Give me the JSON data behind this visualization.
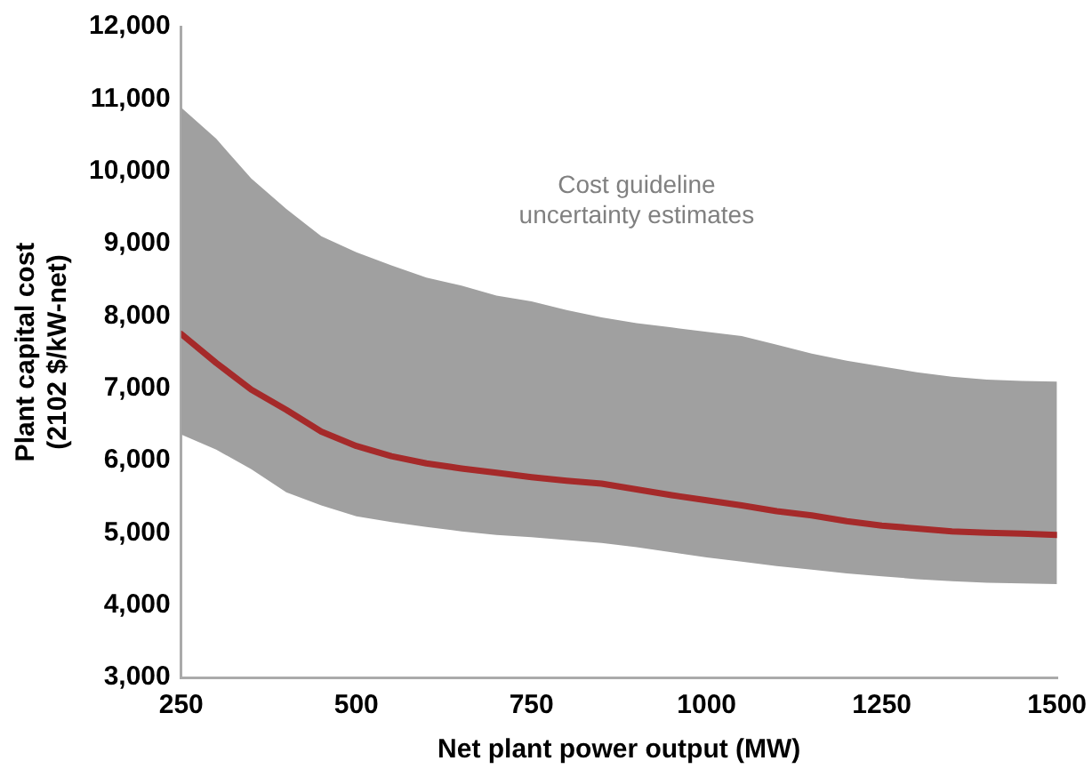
{
  "chart_data": {
    "type": "line",
    "xlabel": "Net plant power output (MW)",
    "ylabel": "Plant capital cost\n(2102 $/kW-net)",
    "annotations": [
      "Cost guideline\nuncertainty estimates"
    ],
    "x": [
      250,
      300,
      350,
      400,
      450,
      500,
      550,
      600,
      650,
      700,
      750,
      800,
      850,
      900,
      950,
      1000,
      1050,
      1100,
      1150,
      1200,
      1250,
      1300,
      1350,
      1400,
      1450,
      1500
    ],
    "series": [
      {
        "color": "#a52a2a",
        "values": [
          7750,
          7350,
          6980,
          6700,
          6400,
          6200,
          6060,
          5960,
          5890,
          5830,
          5770,
          5720,
          5680,
          5600,
          5520,
          5450,
          5380,
          5300,
          5240,
          5160,
          5100,
          5060,
          5020,
          5000,
          4990,
          4970
        ],
        "upper": [
          10880,
          10450,
          9900,
          9480,
          9100,
          8880,
          8700,
          8530,
          8420,
          8280,
          8200,
          8080,
          7980,
          7900,
          7840,
          7780,
          7720,
          7600,
          7480,
          7380,
          7300,
          7220,
          7160,
          7120,
          7100,
          7090
        ],
        "lower": [
          6360,
          6150,
          5880,
          5560,
          5380,
          5230,
          5150,
          5080,
          5020,
          4970,
          4940,
          4900,
          4860,
          4800,
          4730,
          4660,
          4600,
          4540,
          4490,
          4440,
          4400,
          4360,
          4330,
          4310,
          4300,
          4290
        ]
      }
    ],
    "xlim": [
      250,
      1500
    ],
    "xticks": [
      250,
      500,
      750,
      1000,
      1250,
      1500
    ],
    "ylim": [
      3000,
      12000
    ],
    "yticks": [
      {
        "value": 3000,
        "label": "3,000"
      },
      {
        "value": 4000,
        "label": "4,000"
      },
      {
        "value": 5000,
        "label": "5,000"
      },
      {
        "value": 6000,
        "label": "6,000"
      },
      {
        "value": 7000,
        "label": "7,000"
      },
      {
        "value": 8000,
        "label": "8,000"
      },
      {
        "value": 9000,
        "label": "9,000"
      },
      {
        "value": 10000,
        "label": "10,000"
      },
      {
        "value": 11000,
        "label": "11,000"
      },
      {
        "value": 12000,
        "label": "12,000"
      }
    ],
    "grid": false,
    "legend": false,
    "marker": "none",
    "line_style": "solid"
  }
}
